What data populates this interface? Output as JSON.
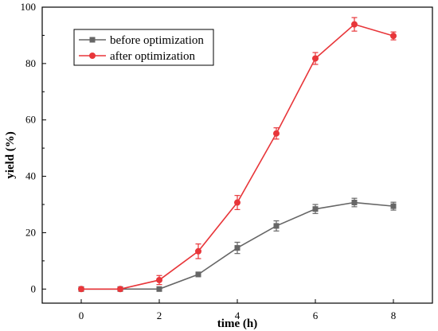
{
  "chart_data": {
    "type": "line",
    "xlabel": "time (h)",
    "ylabel": "yield (%)",
    "xlim": [
      -1,
      9
    ],
    "ylim": [
      -5,
      100
    ],
    "xticks": [
      0,
      2,
      4,
      6,
      8
    ],
    "yticks": [
      0,
      20,
      40,
      60,
      80,
      100
    ],
    "grid": false,
    "legend_position": "top-left",
    "series": [
      {
        "name": "before optimization",
        "color": "#666666",
        "marker": "square",
        "x": [
          0,
          1,
          2,
          3,
          4,
          5,
          6,
          7,
          8
        ],
        "y": [
          0,
          0,
          0,
          5.2,
          14.6,
          22.4,
          28.4,
          30.7,
          29.4
        ],
        "error": [
          0,
          0,
          0,
          0.8,
          2.0,
          1.8,
          1.6,
          1.5,
          1.4
        ]
      },
      {
        "name": "after optimization",
        "color": "#e8363a",
        "marker": "circle",
        "x": [
          0,
          1,
          2,
          3,
          4,
          5,
          6,
          7,
          8
        ],
        "y": [
          0,
          0,
          3.2,
          13.4,
          30.7,
          55.2,
          81.8,
          93.9,
          89.8
        ],
        "error": [
          0,
          0,
          1.6,
          2.6,
          2.5,
          2.0,
          2.1,
          2.4,
          1.4
        ]
      }
    ]
  }
}
